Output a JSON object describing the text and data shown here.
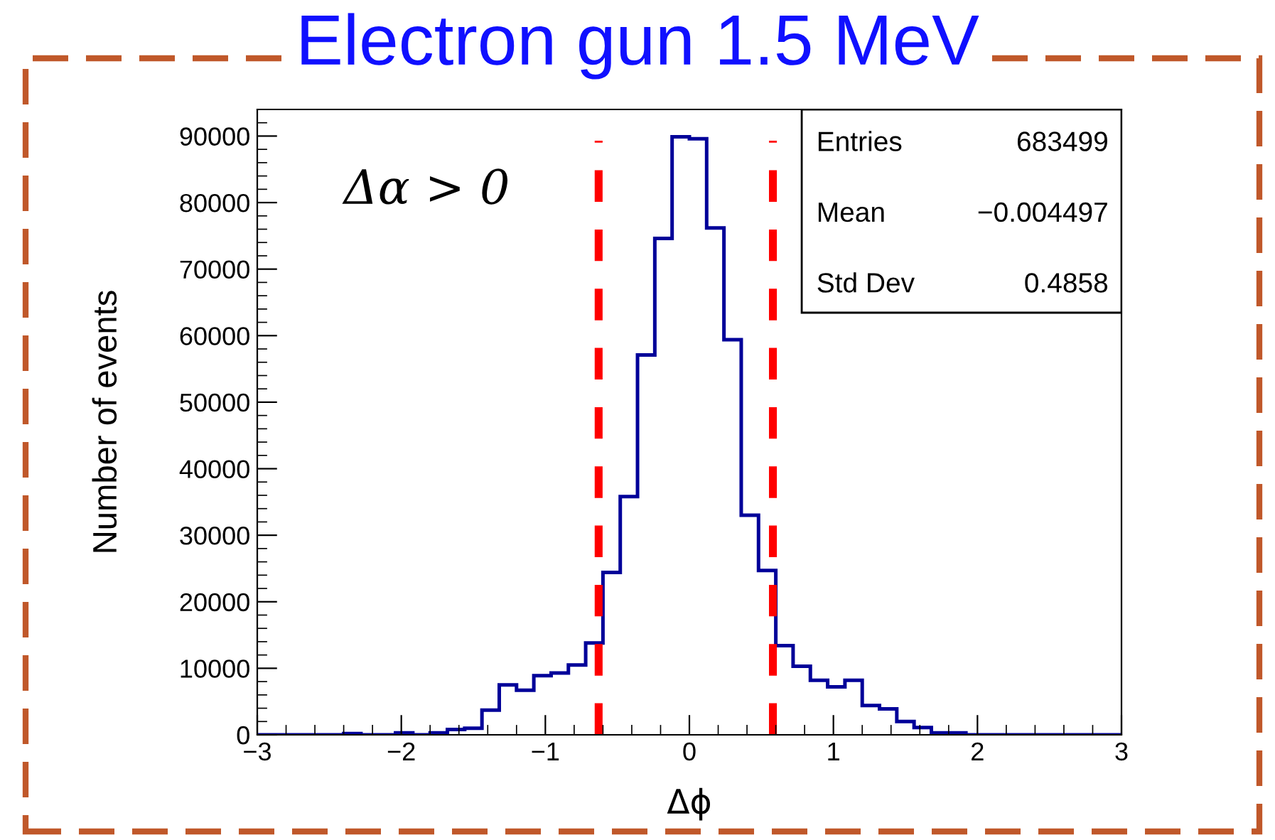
{
  "chart_data": {
    "type": "histogram",
    "title": "Electron gun 1.5 MeV",
    "xlabel": "Δϕ",
    "ylabel": "Number of events",
    "bins": [
      -3,
      -2.88,
      -2.76,
      -2.64,
      -2.52,
      -2.4,
      -2.28,
      -2.16,
      -2.04,
      -1.92,
      -1.8,
      -1.68,
      -1.56,
      -1.44,
      -1.32,
      -1.2,
      -1.08,
      -0.96,
      -0.84,
      -0.72,
      -0.6,
      -0.48,
      -0.36,
      -0.24,
      -0.12,
      0,
      0.12,
      0.24,
      0.36,
      0.48,
      0.6,
      0.72,
      0.84,
      0.96,
      1.08,
      1.2,
      1.32,
      1.44,
      1.56,
      1.68,
      1.8,
      1.92,
      2.04,
      2.16,
      2.28,
      2.4,
      2.52,
      2.64,
      2.76,
      2.88,
      3
    ],
    "values": [
      0,
      0,
      0,
      0,
      0,
      200,
      0,
      0,
      300,
      0,
      300,
      800,
      1000,
      3700,
      7500,
      6700,
      8900,
      9300,
      10500,
      13800,
      24400,
      35800,
      57100,
      74600,
      89900,
      89600,
      76200,
      59400,
      33000,
      24700,
      13400,
      10300,
      8200,
      7200,
      8200,
      4400,
      3900,
      2000,
      1100,
      300,
      300,
      0,
      0,
      0,
      0,
      0,
      0,
      0,
      0,
      0
    ],
    "color": "#000099",
    "xlim": [
      -3,
      3
    ],
    "xticks": [
      {
        "value": -3,
        "label": "−3"
      },
      {
        "value": -2,
        "label": "−2"
      },
      {
        "value": -1,
        "label": "−1"
      },
      0,
      1,
      2,
      3
    ],
    "ylim": [
      0,
      94000
    ],
    "yticks": [
      0,
      10000,
      20000,
      30000,
      40000,
      50000,
      60000,
      70000,
      80000,
      90000
    ],
    "ref_lines": [
      {
        "axis": "x",
        "value": -0.63,
        "color": "#ff0000",
        "line_style": "dashed"
      },
      {
        "axis": "x",
        "value": 0.58,
        "color": "#ff0000",
        "line_style": "dashed"
      }
    ],
    "annotations": [
      "Δα > 0",
      "Entries",
      "683499",
      "Mean",
      "−0.004497",
      "Std Dev",
      "0.4858"
    ],
    "grid": false
  }
}
